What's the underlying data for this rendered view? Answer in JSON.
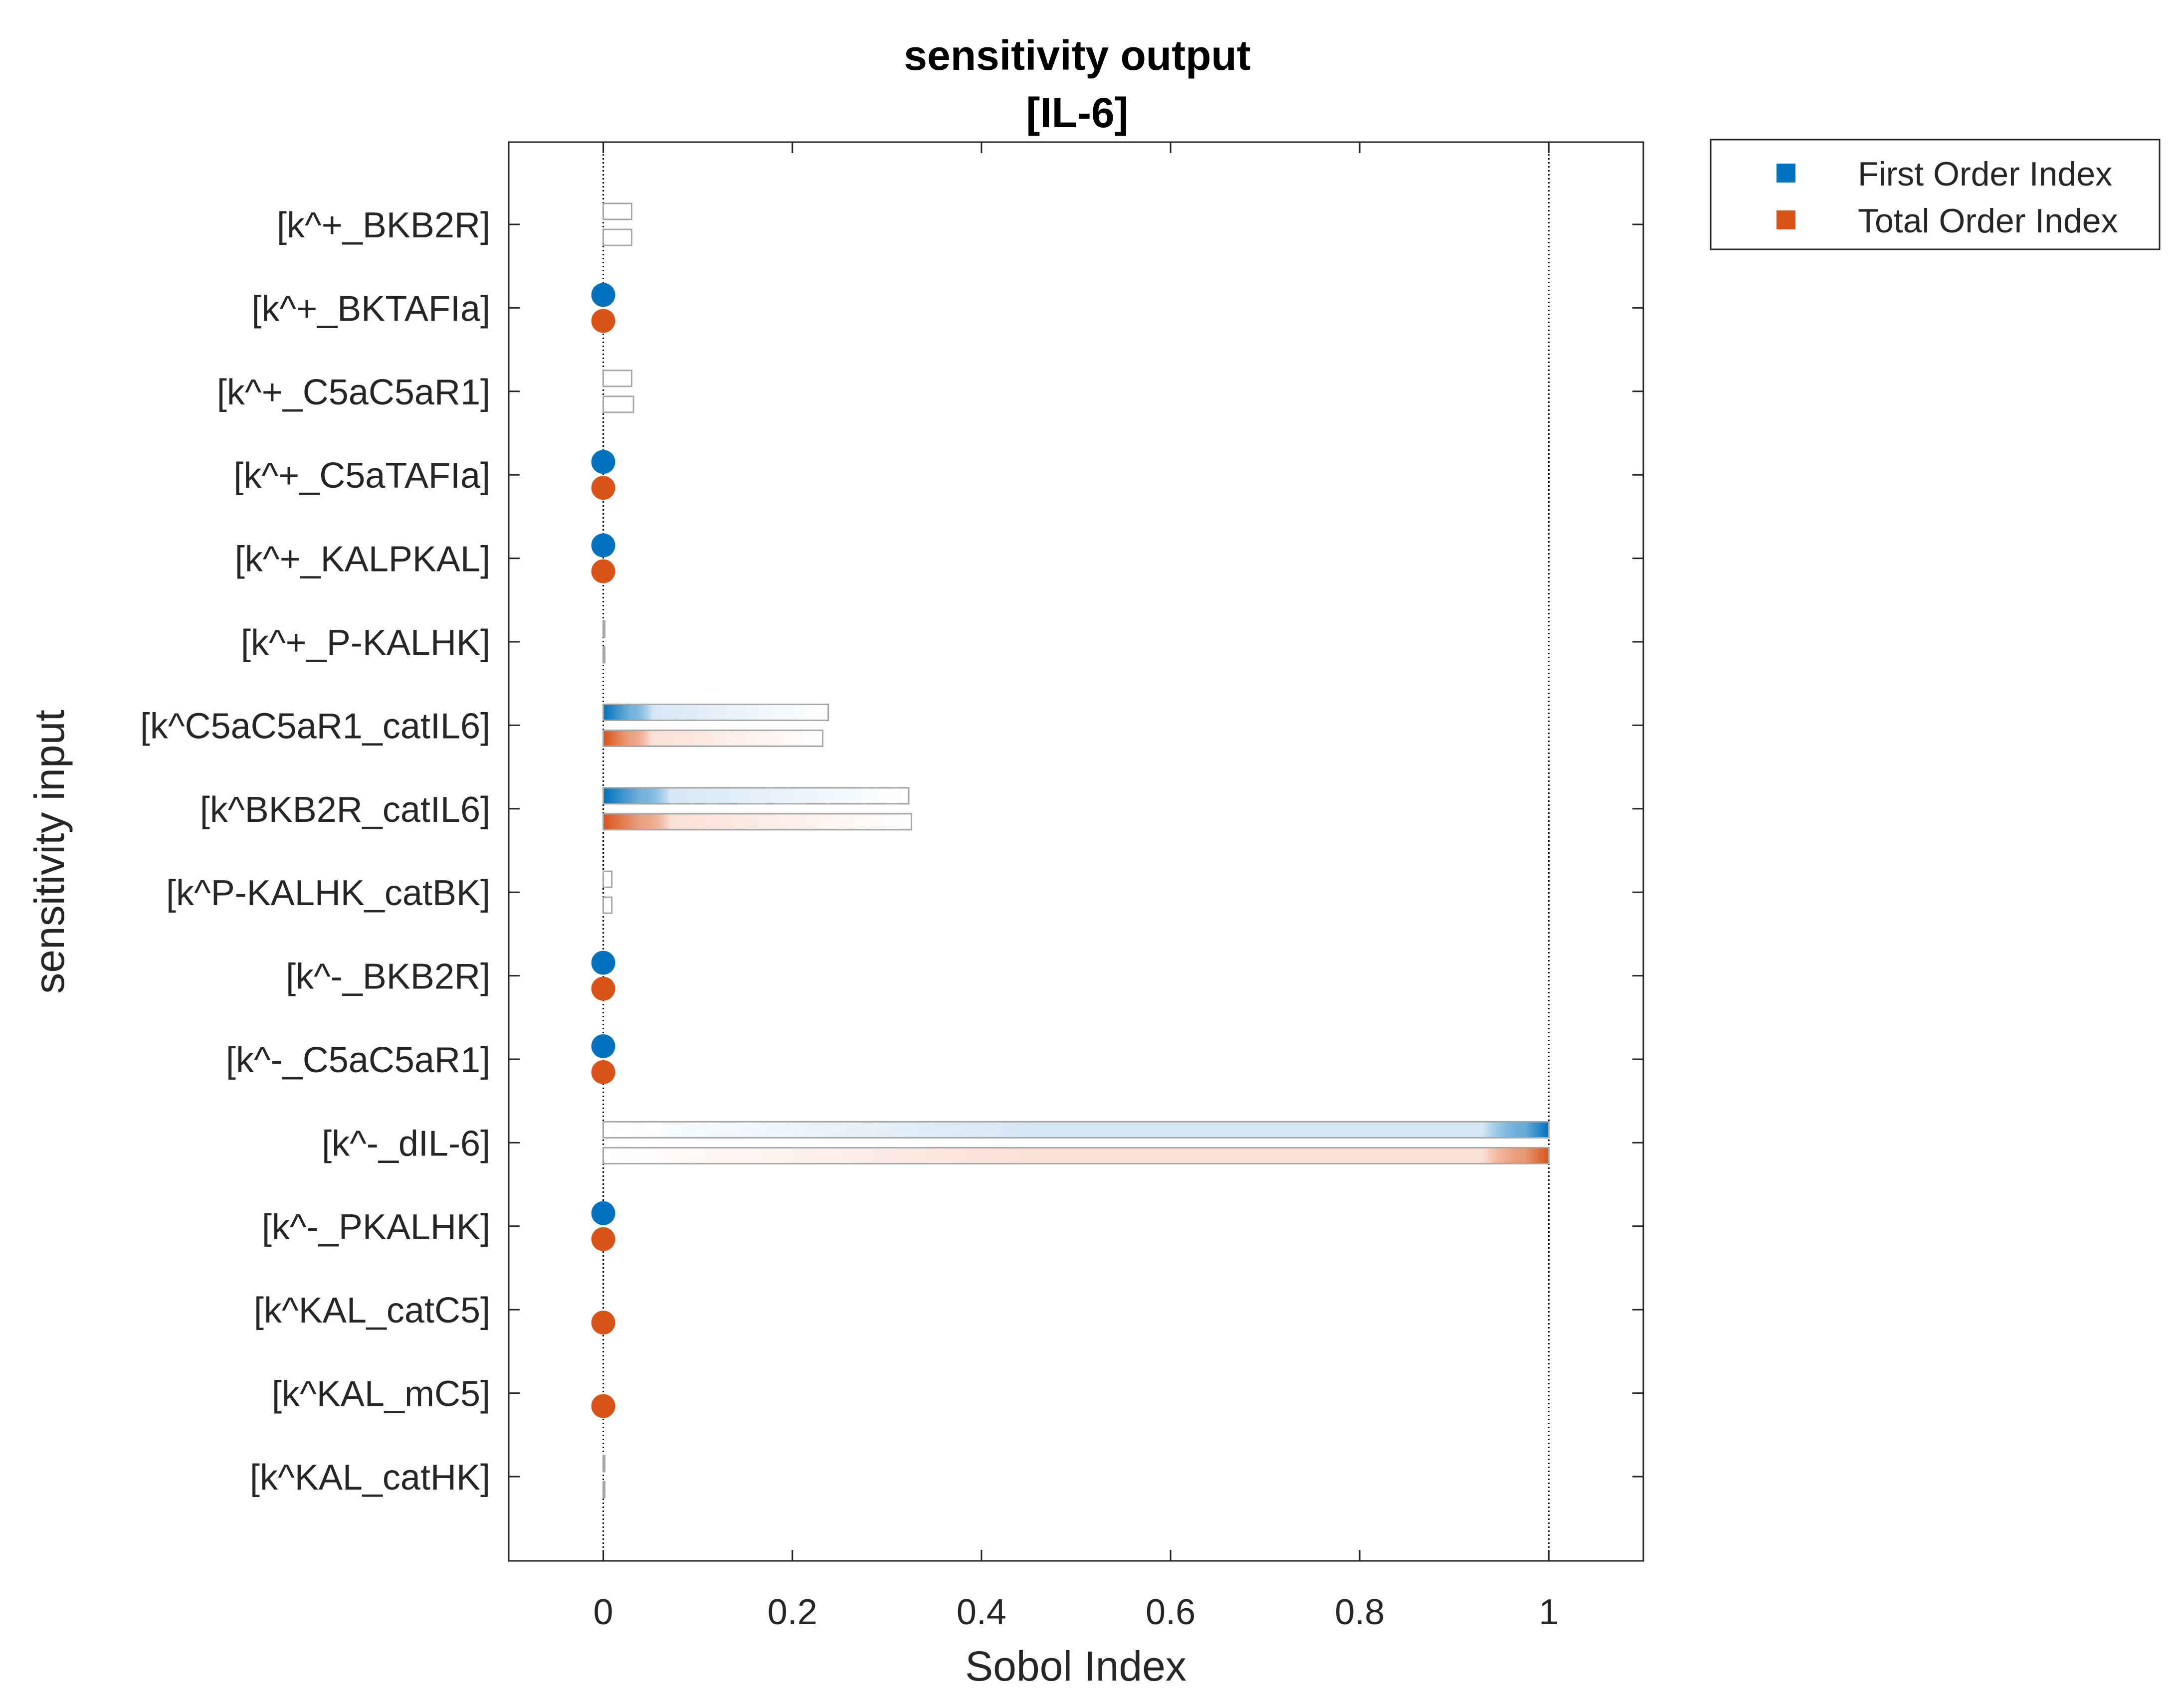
{
  "chart_data": {
    "type": "bar",
    "orientation": "horizontal",
    "title": "sensitivity output",
    "subtitle": "[IL-6]",
    "xlabel": "Sobol Index",
    "ylabel": "sensitivity input",
    "xlim": [
      -0.1,
      1.1
    ],
    "xticks": [
      "0",
      "0.2",
      "0.4",
      "0.6",
      "0.8",
      "1"
    ],
    "xtick_values": [
      0,
      0.2,
      0.4,
      0.6,
      0.8,
      1
    ],
    "reference_lines": [
      0,
      1
    ],
    "grid": false,
    "legend_position": "outside-top-right",
    "categories": [
      "[k^+_BKB2R]",
      "[k^+_BKTAFIa]",
      "[k^+_C5aC5aR1]",
      "[k^+_C5aTAFIa]",
      "[k^+_KALPKAL]",
      "[k^+_P-KALHK]",
      "[k^C5aC5aR1_catIL6]",
      "[k^BKB2R_catIL6]",
      "[k^P-KALHK_catBK]",
      "[k^-_BKB2R]",
      "[k^-_C5aC5aR1]",
      "[k^-_dIL-6]",
      "[k^-_PKALHK]",
      "[k^KAL_catC5]",
      "[k^KAL_mC5]",
      "[k^KAL_catHK]"
    ],
    "series": [
      {
        "name": "First Order Index",
        "color": "#0072BD",
        "values": [
          0.03,
          0,
          0.03,
          0,
          0,
          0.001,
          0.238,
          0.323,
          0.009,
          0,
          0,
          1.0,
          0,
          null,
          null,
          0.001
        ],
        "display": [
          "bar",
          "dot",
          "bar",
          "dot",
          "dot",
          "bar",
          "bar",
          "bar",
          "bar",
          "dot",
          "dot",
          "bar",
          "dot",
          "none",
          "none",
          "bar"
        ]
      },
      {
        "name": "Total Order Index",
        "color": "#D95319",
        "values": [
          0.03,
          0,
          0.032,
          0,
          0,
          0.001,
          0.232,
          0.326,
          0.009,
          0,
          0,
          1.0,
          0,
          0,
          0,
          0.001
        ],
        "display": [
          "bar",
          "dot",
          "bar",
          "dot",
          "dot",
          "bar",
          "bar",
          "bar",
          "bar",
          "dot",
          "dot",
          "bar",
          "dot",
          "dot",
          "dot",
          "bar"
        ]
      }
    ]
  }
}
